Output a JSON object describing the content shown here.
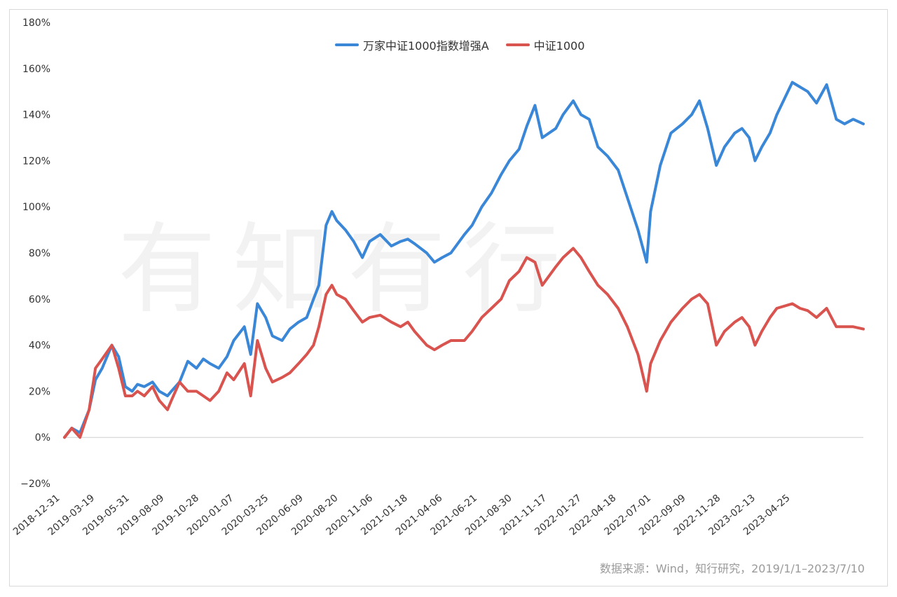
{
  "chart_data": {
    "type": "line",
    "title": "",
    "xlabel": "",
    "ylabel": "",
    "ylim": [
      -0.2,
      1.8
    ],
    "y_ticks": [
      "180%",
      "160%",
      "140%",
      "120%",
      "100%",
      "80%",
      "60%",
      "40%",
      "20%",
      "0%",
      "−20%"
    ],
    "y_tick_values": [
      1.8,
      1.6,
      1.4,
      1.2,
      1.0,
      0.8,
      0.6,
      0.4,
      0.2,
      0.0,
      -0.2
    ],
    "x_ticks": [
      "2018-12-31",
      "2019-03-19",
      "2019-05-31",
      "2019-08-09",
      "2019-10-28",
      "2020-01-07",
      "2020-03-25",
      "2020-06-09",
      "2020-08-20",
      "2020-11-06",
      "2021-01-18",
      "2021-04-06",
      "2021-06-21",
      "2021-08-30",
      "2021-11-17",
      "2022-01-27",
      "2022-04-18",
      "2022-07-01",
      "2022-09-09",
      "2022-11-28",
      "2023-02-13",
      "2023-04-25"
    ],
    "grid": false,
    "legend": "top-center",
    "series": [
      {
        "name": "万家中证1000指数增强A",
        "color": "#3a87d8",
        "x": [
          "2018-12-31",
          "2019-01-15",
          "2019-02-01",
          "2019-02-20",
          "2019-03-05",
          "2019-03-19",
          "2019-04-08",
          "2019-04-22",
          "2019-05-06",
          "2019-05-20",
          "2019-05-31",
          "2019-06-14",
          "2019-07-01",
          "2019-07-15",
          "2019-08-01",
          "2019-08-09",
          "2019-08-26",
          "2019-09-12",
          "2019-09-30",
          "2019-10-14",
          "2019-10-28",
          "2019-11-15",
          "2019-12-02",
          "2019-12-16",
          "2020-01-07",
          "2020-01-20",
          "2020-02-03",
          "2020-02-20",
          "2020-03-05",
          "2020-03-25",
          "2020-04-10",
          "2020-04-28",
          "2020-05-15",
          "2020-05-29",
          "2020-06-09",
          "2020-06-24",
          "2020-07-06",
          "2020-07-16",
          "2020-08-03",
          "2020-08-20",
          "2020-09-07",
          "2020-09-22",
          "2020-10-14",
          "2020-11-06",
          "2020-11-25",
          "2020-12-10",
          "2020-12-24",
          "2021-01-18",
          "2021-02-03",
          "2021-02-19",
          "2021-03-09",
          "2021-04-06",
          "2021-04-22",
          "2021-05-12",
          "2021-06-01",
          "2021-06-21",
          "2021-07-08",
          "2021-07-28",
          "2021-08-13",
          "2021-08-30",
          "2021-09-14",
          "2021-10-12",
          "2021-10-27",
          "2021-11-17",
          "2021-12-03",
          "2021-12-20",
          "2022-01-07",
          "2022-01-27",
          "2022-02-18",
          "2022-03-09",
          "2022-03-31",
          "2022-04-18",
          "2022-04-26",
          "2022-05-16",
          "2022-06-07",
          "2022-07-01",
          "2022-07-20",
          "2022-08-05",
          "2022-08-22",
          "2022-09-09",
          "2022-09-26",
          "2022-10-17",
          "2022-11-01",
          "2022-11-16",
          "2022-11-28",
          "2022-12-12",
          "2022-12-29",
          "2023-01-12",
          "2023-02-13",
          "2023-03-01",
          "2023-03-17",
          "2023-04-04",
          "2023-04-25",
          "2023-05-15",
          "2023-06-01",
          "2023-06-19",
          "2023-07-10"
        ],
        "values": [
          0.0,
          0.04,
          0.02,
          0.12,
          0.25,
          0.3,
          0.4,
          0.35,
          0.22,
          0.2,
          0.23,
          0.22,
          0.24,
          0.2,
          0.18,
          0.2,
          0.24,
          0.33,
          0.3,
          0.34,
          0.32,
          0.3,
          0.35,
          0.42,
          0.48,
          0.36,
          0.58,
          0.52,
          0.44,
          0.42,
          0.47,
          0.5,
          0.52,
          0.6,
          0.66,
          0.92,
          0.98,
          0.94,
          0.9,
          0.85,
          0.78,
          0.85,
          0.88,
          0.83,
          0.85,
          0.86,
          0.84,
          0.8,
          0.76,
          0.78,
          0.8,
          0.88,
          0.92,
          1.0,
          1.06,
          1.14,
          1.2,
          1.25,
          1.35,
          1.44,
          1.3,
          1.34,
          1.4,
          1.46,
          1.4,
          1.38,
          1.26,
          1.22,
          1.16,
          1.04,
          0.9,
          0.76,
          0.98,
          1.18,
          1.32,
          1.36,
          1.4,
          1.46,
          1.34,
          1.18,
          1.26,
          1.32,
          1.34,
          1.3,
          1.2,
          1.26,
          1.32,
          1.4,
          1.54,
          1.52,
          1.5,
          1.45,
          1.53,
          1.38,
          1.36,
          1.38,
          1.36
        ]
      },
      {
        "name": "中证1000",
        "color": "#d9534f",
        "x": [
          "2018-12-31",
          "2019-01-15",
          "2019-02-01",
          "2019-02-20",
          "2019-03-05",
          "2019-03-19",
          "2019-04-08",
          "2019-04-22",
          "2019-05-06",
          "2019-05-20",
          "2019-05-31",
          "2019-06-14",
          "2019-07-01",
          "2019-07-15",
          "2019-08-01",
          "2019-08-09",
          "2019-08-26",
          "2019-09-12",
          "2019-09-30",
          "2019-10-14",
          "2019-10-28",
          "2019-11-15",
          "2019-12-02",
          "2019-12-16",
          "2020-01-07",
          "2020-01-20",
          "2020-02-03",
          "2020-02-20",
          "2020-03-05",
          "2020-03-25",
          "2020-04-10",
          "2020-04-28",
          "2020-05-15",
          "2020-05-29",
          "2020-06-09",
          "2020-06-24",
          "2020-07-06",
          "2020-07-16",
          "2020-08-03",
          "2020-08-20",
          "2020-09-07",
          "2020-09-22",
          "2020-10-14",
          "2020-11-06",
          "2020-11-25",
          "2020-12-10",
          "2020-12-24",
          "2021-01-18",
          "2021-02-03",
          "2021-02-19",
          "2021-03-09",
          "2021-04-06",
          "2021-04-22",
          "2021-05-12",
          "2021-06-01",
          "2021-06-21",
          "2021-07-08",
          "2021-07-28",
          "2021-08-13",
          "2021-08-30",
          "2021-09-14",
          "2021-10-12",
          "2021-10-27",
          "2021-11-17",
          "2021-12-03",
          "2021-12-20",
          "2022-01-07",
          "2022-01-27",
          "2022-02-18",
          "2022-03-09",
          "2022-03-31",
          "2022-04-18",
          "2022-04-26",
          "2022-05-16",
          "2022-06-07",
          "2022-07-01",
          "2022-07-20",
          "2022-08-05",
          "2022-08-22",
          "2022-09-09",
          "2022-09-26",
          "2022-10-17",
          "2022-11-01",
          "2022-11-16",
          "2022-11-28",
          "2022-12-12",
          "2022-12-29",
          "2023-01-12",
          "2023-02-13",
          "2023-03-01",
          "2023-03-17",
          "2023-04-04",
          "2023-04-25",
          "2023-05-15",
          "2023-06-01",
          "2023-06-19",
          "2023-07-10"
        ],
        "values": [
          0.0,
          0.04,
          0.0,
          0.12,
          0.3,
          0.34,
          0.4,
          0.3,
          0.18,
          0.18,
          0.2,
          0.18,
          0.22,
          0.16,
          0.12,
          0.16,
          0.24,
          0.2,
          0.2,
          0.18,
          0.16,
          0.2,
          0.28,
          0.25,
          0.32,
          0.18,
          0.42,
          0.3,
          0.24,
          0.26,
          0.28,
          0.32,
          0.36,
          0.4,
          0.48,
          0.62,
          0.66,
          0.62,
          0.6,
          0.55,
          0.5,
          0.52,
          0.53,
          0.5,
          0.48,
          0.5,
          0.46,
          0.4,
          0.38,
          0.4,
          0.42,
          0.42,
          0.46,
          0.52,
          0.56,
          0.6,
          0.68,
          0.72,
          0.78,
          0.76,
          0.66,
          0.74,
          0.78,
          0.82,
          0.78,
          0.72,
          0.66,
          0.62,
          0.56,
          0.48,
          0.36,
          0.2,
          0.32,
          0.42,
          0.5,
          0.56,
          0.6,
          0.62,
          0.58,
          0.4,
          0.46,
          0.5,
          0.52,
          0.48,
          0.4,
          0.46,
          0.52,
          0.56,
          0.58,
          0.56,
          0.55,
          0.52,
          0.56,
          0.48,
          0.48,
          0.48,
          0.47
        ]
      }
    ]
  },
  "legend": {
    "items": [
      {
        "label": "万家中证1000指数增强A",
        "color": "#3a87d8"
      },
      {
        "label": "中证1000",
        "color": "#d9534f"
      }
    ]
  },
  "source_note": "数据来源：Wind，知行研究，2019/1/1–2023/7/10",
  "watermark": "有知有行"
}
